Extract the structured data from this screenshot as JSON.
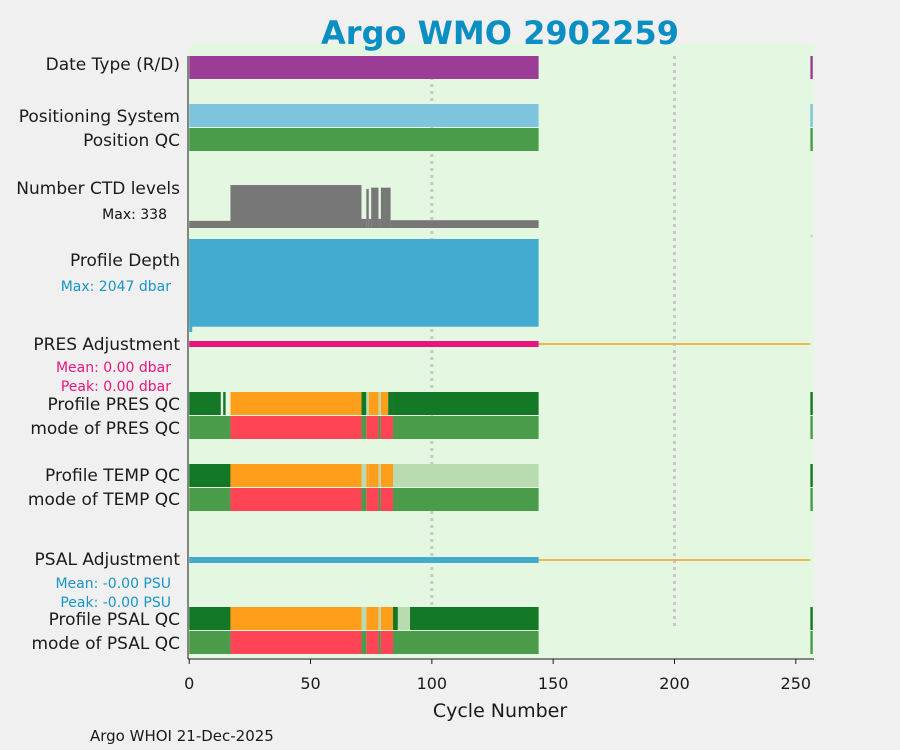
{
  "chart_data": {
    "type": "bar",
    "title": "Argo WMO 2902259",
    "xlabel": "Cycle Number",
    "xlim": [
      -0.5,
      257.5
    ],
    "xticks": [
      0,
      50,
      100,
      150,
      200,
      250
    ],
    "footer": "Argo WHOI 21-Dec-2025",
    "colors": {
      "title": "#0b8fc2",
      "plot_bg": "#e4f7e0",
      "data_type": "#9b3d96",
      "positioning": "#7ec4dd",
      "qc_good": "#4a9c4a",
      "qc_dark_good": "#137825",
      "qc_probably_good": "#b8dbb0",
      "qc_orange": "#ff9e1a",
      "qc_bad": "#ff4455",
      "ctd": "#777777",
      "depth": "#43aad0",
      "pres_adj": "#e8157b",
      "psal_adj": "#43aad0",
      "adj_zero_line": "#eab850",
      "ref_line": "#c8c8c8",
      "pres_stats": "#e8157b",
      "psal_stats": "#1796c5"
    },
    "reference_lines": [
      100,
      200
    ],
    "rows": [
      {
        "name": "Date Type (R/D)",
        "segments": [
          [
            0,
            144,
            "data_type"
          ],
          [
            256,
            257,
            "data_type"
          ]
        ]
      },
      {
        "name": "Positioning System",
        "segments": [
          [
            0,
            144,
            "positioning"
          ],
          [
            256,
            257,
            "positioning"
          ]
        ]
      },
      {
        "name": "Position QC",
        "segments": [
          [
            0,
            144,
            "qc_good"
          ],
          [
            256,
            257,
            "qc_good"
          ]
        ]
      },
      {
        "name": "Profile PRES QC",
        "segments": [
          [
            0,
            13,
            "qc_dark_good"
          ],
          [
            14,
            15,
            "qc_dark_good"
          ],
          [
            17,
            71,
            "qc_orange"
          ],
          [
            71,
            73,
            "qc_dark_good"
          ],
          [
            73,
            74,
            "qc_probably_good"
          ],
          [
            74,
            78,
            "qc_orange"
          ],
          [
            78,
            79,
            "qc_probably_good"
          ],
          [
            79,
            82,
            "qc_orange"
          ],
          [
            82,
            84,
            "qc_dark_good"
          ],
          [
            84,
            144,
            "qc_dark_good"
          ],
          [
            256,
            257,
            "qc_dark_good"
          ]
        ]
      },
      {
        "name": "mode of PRES QC",
        "segments": [
          [
            0,
            17,
            "qc_good"
          ],
          [
            17,
            71,
            "qc_bad"
          ],
          [
            71,
            73,
            "qc_good"
          ],
          [
            73,
            78,
            "qc_bad"
          ],
          [
            78,
            79,
            "qc_good"
          ],
          [
            79,
            84,
            "qc_bad"
          ],
          [
            84,
            144,
            "qc_good"
          ],
          [
            256,
            257,
            "qc_good"
          ]
        ]
      },
      {
        "name": "Profile TEMP QC",
        "segments": [
          [
            0,
            17,
            "qc_dark_good"
          ],
          [
            17,
            71,
            "qc_orange"
          ],
          [
            71,
            73,
            "qc_probably_good"
          ],
          [
            73,
            74,
            "qc_orange"
          ],
          [
            74,
            78,
            "qc_orange"
          ],
          [
            78,
            79,
            "qc_probably_good"
          ],
          [
            79,
            84,
            "qc_orange"
          ],
          [
            84,
            144,
            "qc_probably_good"
          ],
          [
            256,
            257,
            "qc_dark_good"
          ]
        ]
      },
      {
        "name": "mode of TEMP QC",
        "segments": [
          [
            0,
            17,
            "qc_good"
          ],
          [
            17,
            71,
            "qc_bad"
          ],
          [
            71,
            73,
            "qc_good"
          ],
          [
            73,
            78,
            "qc_bad"
          ],
          [
            78,
            79,
            "qc_good"
          ],
          [
            79,
            84,
            "qc_bad"
          ],
          [
            84,
            144,
            "qc_good"
          ],
          [
            256,
            257,
            "qc_good"
          ]
        ]
      },
      {
        "name": "Profile PSAL QC",
        "segments": [
          [
            0,
            17,
            "qc_dark_good"
          ],
          [
            17,
            71,
            "qc_orange"
          ],
          [
            71,
            73,
            "qc_probably_good"
          ],
          [
            73,
            78,
            "qc_orange"
          ],
          [
            78,
            79,
            "qc_probably_good"
          ],
          [
            79,
            84,
            "qc_orange"
          ],
          [
            84,
            86,
            "qc_dark_good"
          ],
          [
            86,
            91,
            "qc_probably_good"
          ],
          [
            91,
            144,
            "qc_dark_good"
          ],
          [
            256,
            257,
            "qc_dark_good"
          ]
        ]
      },
      {
        "name": "mode of PSAL QC",
        "segments": [
          [
            0,
            17,
            "qc_good"
          ],
          [
            17,
            71,
            "qc_bad"
          ],
          [
            71,
            73,
            "qc_good"
          ],
          [
            73,
            78,
            "qc_bad"
          ],
          [
            78,
            79,
            "qc_good"
          ],
          [
            79,
            84,
            "qc_bad"
          ],
          [
            84,
            144,
            "qc_good"
          ],
          [
            256,
            257,
            "qc_good"
          ]
        ]
      }
    ],
    "ctd_levels": {
      "name": "Number CTD levels",
      "max_label": "Max: 338",
      "max": 338,
      "cycle_range": [
        0,
        144
      ],
      "blocks": [
        [
          0,
          17,
          55
        ],
        [
          17,
          71,
          330
        ],
        [
          71,
          73,
          70
        ],
        [
          73,
          74,
          300
        ],
        [
          74,
          75,
          70
        ],
        [
          75,
          78,
          310
        ],
        [
          78,
          79,
          70
        ],
        [
          79,
          83,
          310
        ],
        [
          83,
          144,
          60
        ]
      ]
    },
    "profile_depth": {
      "name": "Profile Depth",
      "max_label": "Max: 2047 dbar",
      "max": 2047,
      "cycle_range": [
        0,
        144
      ],
      "value": 1930,
      "first_cycle_value": 2047
    },
    "pres_adjustment": {
      "name": "PRES Adjustment",
      "mean_label": "Mean: 0.00 dbar",
      "peak_label": "Peak: 0.00 dbar",
      "cycle_range": [
        0,
        144
      ]
    },
    "psal_adjustment": {
      "name": "PSAL Adjustment",
      "mean_label": "Mean: -0.00 PSU",
      "peak_label": "Peak: -0.00 PSU",
      "cycle_range": [
        0,
        144
      ]
    }
  }
}
